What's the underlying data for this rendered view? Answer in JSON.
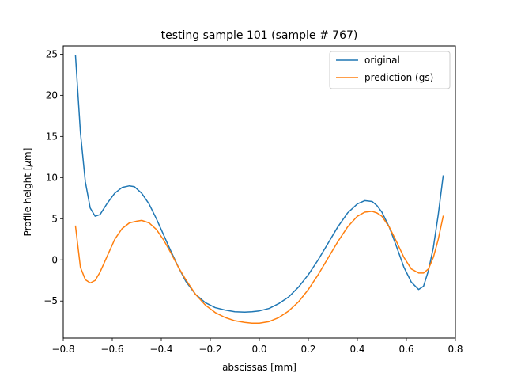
{
  "chart_data": {
    "type": "line",
    "title": "testing sample 101 (sample # 767)",
    "xlabel": "abscissas [mm]",
    "ylabel_prefix": "Profile height [",
    "ylabel_mu": "μ",
    "ylabel_suffix": "m]",
    "xlim": [
      -0.8,
      0.8
    ],
    "ylim": [
      -9.5,
      26
    ],
    "x_ticks": [
      -0.8,
      -0.6,
      -0.4,
      -0.2,
      0.0,
      0.2,
      0.4,
      0.6,
      0.8
    ],
    "x_tick_labels": [
      "−0.8",
      "−0.6",
      "−0.4",
      "−0.2",
      "0.0",
      "0.2",
      "0.4",
      "0.6",
      "0.8"
    ],
    "y_ticks": [
      -5,
      0,
      5,
      10,
      15,
      20,
      25
    ],
    "y_tick_labels": [
      "−5",
      "0",
      "5",
      "10",
      "15",
      "20",
      "25"
    ],
    "grid": false,
    "legend_position": "top-right",
    "series": [
      {
        "name": "original",
        "color": "#1f77b4",
        "x": [
          -0.75,
          -0.73,
          -0.71,
          -0.69,
          -0.67,
          -0.65,
          -0.62,
          -0.59,
          -0.56,
          -0.53,
          -0.51,
          -0.48,
          -0.45,
          -0.42,
          -0.39,
          -0.36,
          -0.33,
          -0.3,
          -0.26,
          -0.22,
          -0.18,
          -0.14,
          -0.1,
          -0.06,
          -0.03,
          0.0,
          0.04,
          0.08,
          0.12,
          0.16,
          0.2,
          0.24,
          0.28,
          0.32,
          0.36,
          0.4,
          0.43,
          0.46,
          0.48,
          0.5,
          0.53,
          0.56,
          0.59,
          0.62,
          0.65,
          0.67,
          0.69,
          0.71,
          0.73,
          0.75
        ],
        "y": [
          24.8,
          15.5,
          9.5,
          6.3,
          5.3,
          5.5,
          6.9,
          8.1,
          8.8,
          9.0,
          8.9,
          8.1,
          6.8,
          5.0,
          3.0,
          1.0,
          -0.9,
          -2.6,
          -4.2,
          -5.2,
          -5.8,
          -6.1,
          -6.3,
          -6.35,
          -6.3,
          -6.2,
          -5.9,
          -5.3,
          -4.5,
          -3.3,
          -1.8,
          0.0,
          2.0,
          4.0,
          5.7,
          6.8,
          7.2,
          7.1,
          6.6,
          5.8,
          4.0,
          1.6,
          -0.9,
          -2.7,
          -3.6,
          -3.2,
          -1.3,
          1.5,
          5.5,
          10.2
        ]
      },
      {
        "name": "prediction (gs)",
        "color": "#ff7f0e",
        "x": [
          -0.75,
          -0.73,
          -0.71,
          -0.69,
          -0.67,
          -0.65,
          -0.62,
          -0.59,
          -0.56,
          -0.53,
          -0.5,
          -0.48,
          -0.45,
          -0.42,
          -0.39,
          -0.36,
          -0.33,
          -0.3,
          -0.26,
          -0.22,
          -0.18,
          -0.14,
          -0.1,
          -0.06,
          -0.03,
          0.0,
          0.04,
          0.08,
          0.12,
          0.16,
          0.2,
          0.24,
          0.28,
          0.32,
          0.36,
          0.4,
          0.43,
          0.46,
          0.48,
          0.5,
          0.53,
          0.56,
          0.59,
          0.62,
          0.65,
          0.67,
          0.69,
          0.71,
          0.73,
          0.75
        ],
        "y": [
          4.1,
          -0.9,
          -2.4,
          -2.8,
          -2.5,
          -1.5,
          0.5,
          2.5,
          3.8,
          4.5,
          4.7,
          4.8,
          4.5,
          3.7,
          2.4,
          0.8,
          -0.9,
          -2.4,
          -4.2,
          -5.5,
          -6.4,
          -7.0,
          -7.4,
          -7.6,
          -7.7,
          -7.7,
          -7.5,
          -7.0,
          -6.2,
          -5.1,
          -3.6,
          -1.8,
          0.2,
          2.2,
          4.0,
          5.3,
          5.8,
          5.9,
          5.7,
          5.3,
          4.0,
          2.2,
          0.3,
          -1.1,
          -1.6,
          -1.6,
          -1.1,
          0.3,
          2.5,
          5.3
        ]
      }
    ]
  }
}
